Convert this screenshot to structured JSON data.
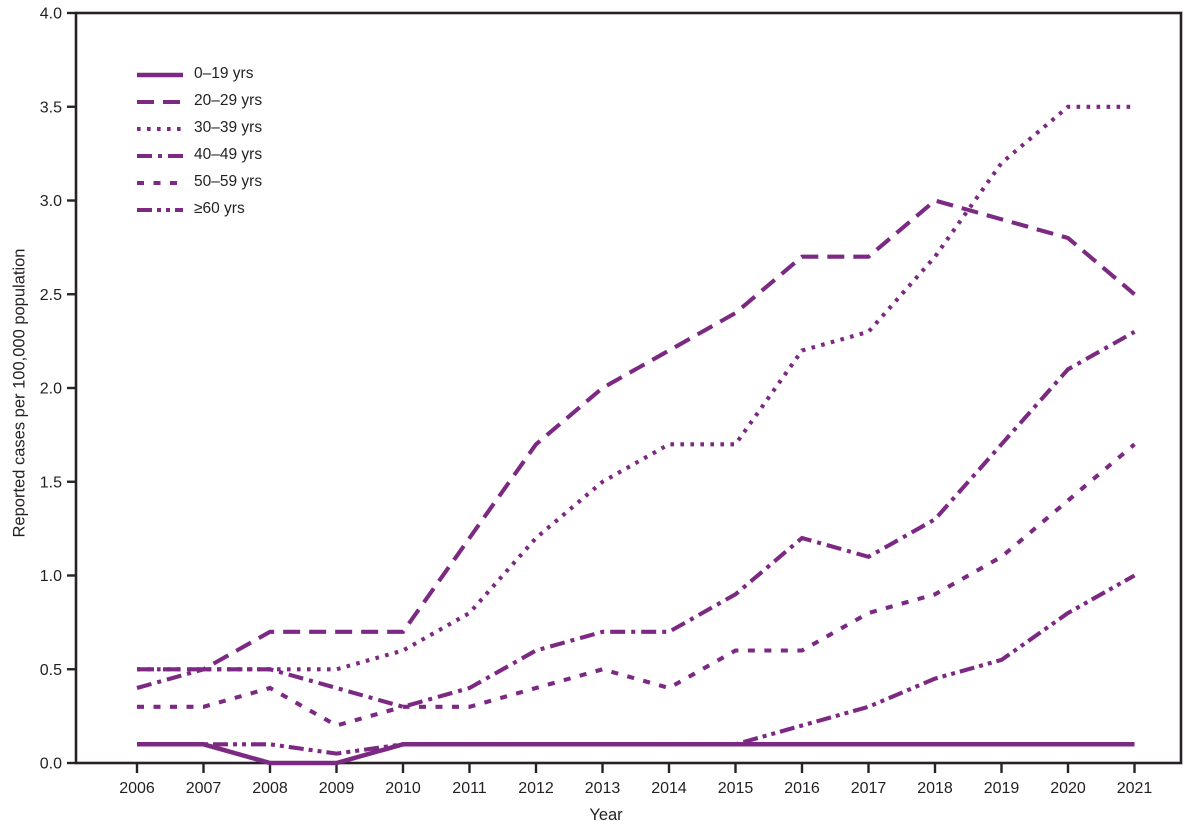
{
  "chart_data": {
    "type": "line",
    "title": "",
    "xlabel": "Year",
    "ylabel": "Reported cases per 100,000 population",
    "x": [
      2006,
      2007,
      2008,
      2009,
      2010,
      2011,
      2012,
      2013,
      2014,
      2015,
      2016,
      2017,
      2018,
      2019,
      2020,
      2021
    ],
    "ylim": [
      0.0,
      4.0
    ],
    "ytick_step": 0.5,
    "ytick_labels": [
      "0.0",
      "0.5",
      "1.0",
      "1.5",
      "2.0",
      "2.5",
      "3.0",
      "3.5",
      "4.0"
    ],
    "grid": false,
    "legend_position": "top-left",
    "line_color": "#7c2983",
    "axis_color": "#262226",
    "series": [
      {
        "name": "0–19 yrs",
        "dash": "solid",
        "values": [
          0.1,
          0.1,
          0.0,
          0.0,
          0.1,
          0.1,
          0.1,
          0.1,
          0.1,
          0.1,
          0.1,
          0.1,
          0.1,
          0.1,
          0.1,
          0.1
        ]
      },
      {
        "name": "20–29 yrs",
        "dash": "long-dash",
        "values": [
          0.5,
          0.5,
          0.7,
          0.7,
          0.7,
          1.2,
          1.7,
          2.0,
          2.2,
          2.4,
          2.7,
          2.7,
          3.0,
          2.9,
          2.8,
          2.5
        ]
      },
      {
        "name": "30–39 yrs",
        "dash": "dot",
        "values": [
          0.5,
          0.5,
          0.5,
          0.5,
          0.6,
          0.8,
          1.2,
          1.5,
          1.7,
          1.7,
          2.2,
          2.3,
          2.7,
          3.2,
          3.5,
          3.5
        ]
      },
      {
        "name": "40–49 yrs",
        "dash": "dash-dot",
        "values": [
          0.4,
          0.5,
          0.5,
          0.4,
          0.3,
          0.4,
          0.6,
          0.7,
          0.7,
          0.9,
          1.2,
          1.1,
          1.3,
          1.7,
          2.1,
          2.3
        ]
      },
      {
        "name": "50–59 yrs",
        "dash": "short-dash",
        "values": [
          0.3,
          0.3,
          0.4,
          0.2,
          0.3,
          0.3,
          0.4,
          0.5,
          0.4,
          0.6,
          0.6,
          0.8,
          0.9,
          1.1,
          1.4,
          1.7
        ]
      },
      {
        "name": "≥60 yrs",
        "dash": "dash-dot-dot",
        "values": [
          0.1,
          0.1,
          0.1,
          0.05,
          0.1,
          0.1,
          0.1,
          0.1,
          0.1,
          0.1,
          0.2,
          0.3,
          0.45,
          0.55,
          0.8,
          1.0
        ]
      }
    ]
  }
}
